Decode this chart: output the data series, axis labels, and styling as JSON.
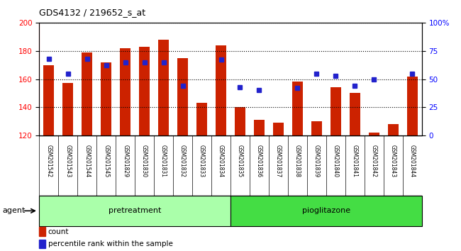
{
  "title": "GDS4132 / 219652_s_at",
  "samples": [
    "GSM201542",
    "GSM201543",
    "GSM201544",
    "GSM201545",
    "GSM201829",
    "GSM201830",
    "GSM201831",
    "GSM201832",
    "GSM201833",
    "GSM201834",
    "GSM201835",
    "GSM201836",
    "GSM201837",
    "GSM201838",
    "GSM201839",
    "GSM201840",
    "GSM201841",
    "GSM201842",
    "GSM201843",
    "GSM201844"
  ],
  "counts": [
    170,
    157,
    179,
    172,
    182,
    183,
    188,
    175,
    143,
    184,
    140,
    131,
    129,
    158,
    130,
    154,
    150,
    122,
    128,
    162
  ],
  "percentile_ranks": [
    68,
    55,
    68,
    62,
    65,
    65,
    65,
    44,
    null,
    67,
    43,
    40,
    null,
    42,
    55,
    53,
    44,
    50,
    null,
    55
  ],
  "bar_color": "#cc2200",
  "dot_color": "#2222cc",
  "ylim_left": [
    120,
    200
  ],
  "ylim_right": [
    0,
    100
  ],
  "yticks_left": [
    120,
    140,
    160,
    180,
    200
  ],
  "yticks_right": [
    0,
    25,
    50,
    75,
    100
  ],
  "yticklabels_right": [
    "0",
    "25",
    "50",
    "75",
    "100%"
  ],
  "groups": [
    {
      "label": "pretreatment",
      "start": 0,
      "end": 9,
      "color": "#aaffaa"
    },
    {
      "label": "pioglitazone",
      "start": 10,
      "end": 19,
      "color": "#44dd44"
    }
  ],
  "agent_label": "agent",
  "legend_count_label": "count",
  "legend_pct_label": "percentile rank within the sample",
  "bar_bottom": 120
}
